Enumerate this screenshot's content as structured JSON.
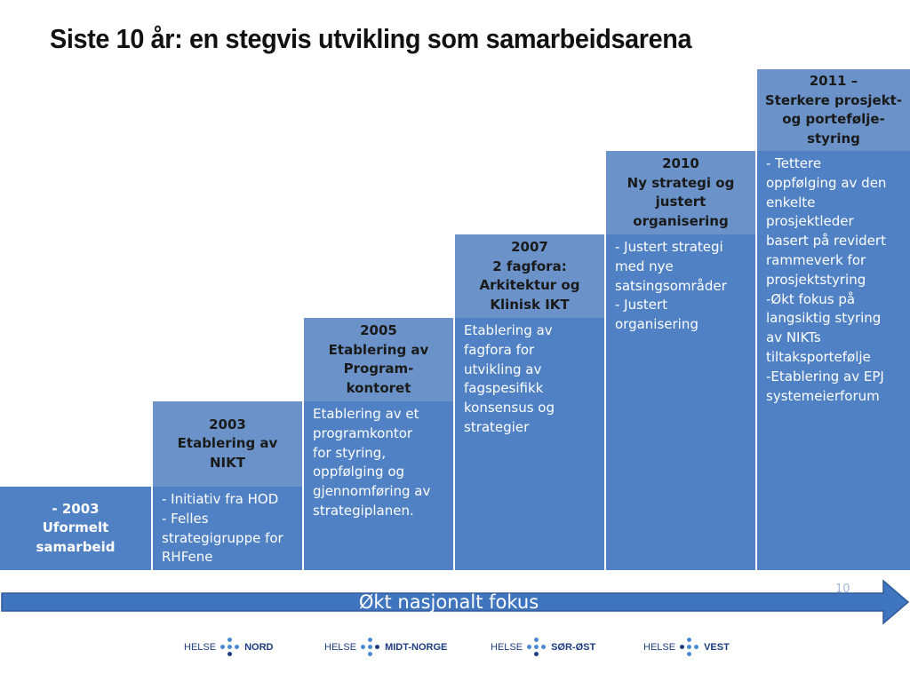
{
  "title": "Siste 10 år: en stegvis utvikling som samarbeidsarena",
  "steps": [
    {
      "head": [
        "- 2003",
        "Uformelt",
        "samarbeid"
      ],
      "body": []
    },
    {
      "head": [
        "2003",
        "Etablering av",
        "NIKT"
      ],
      "body": [
        "- Initiativ fra HOD",
        "- Felles",
        "strategigruppe for",
        "RHFene"
      ]
    },
    {
      "head": [
        "2005",
        "Etablering av",
        "Program-",
        "kontoret"
      ],
      "body": [
        "Etablering av et",
        "programkontor",
        "for styring,",
        "oppfølging og",
        "gjennomføring av",
        "strategiplanen."
      ]
    },
    {
      "head": [
        "2007",
        "2 fagfora:",
        "Arkitektur og",
        "Klinisk IKT"
      ],
      "body": [
        "Etablering av",
        "fagfora for",
        "utvikling av",
        "fagspesifikk",
        "konsensus og",
        "strategier"
      ]
    },
    {
      "head": [
        "2010",
        "Ny strategi og",
        "justert",
        "organisering"
      ],
      "body": [
        "- Justert strategi",
        "med nye",
        "satsingsområder",
        "- Justert",
        "organisering"
      ]
    },
    {
      "head": [
        "2011 –",
        "Sterkere prosjekt-",
        "og portefølje-",
        "styring"
      ],
      "body": [
        "- Tettere",
        "oppfølging av den",
        "enkelte",
        "prosjektleder",
        "basert på revidert",
        "rammeverk for",
        "prosjektstyring",
        "-Økt fokus på",
        "langsiktig styring",
        "av NIKTs",
        "tiltaksportefølje",
        "-Etablering av EPJ",
        "systemeierforum"
      ]
    }
  ],
  "arrow_label": "Økt nasjonalt fokus",
  "page_number": "10",
  "logos": [
    {
      "prefix": "HELSE",
      "name": "NORD"
    },
    {
      "prefix": "HELSE",
      "name": "MIDT-NORGE"
    },
    {
      "prefix": "HELSE",
      "name": "SØR-ØST"
    },
    {
      "prefix": "HELSE",
      "name": "VEST"
    }
  ],
  "colors": {
    "head": "#6b93c9",
    "body": "#4f81c4",
    "arrow": "#3f74bf"
  }
}
